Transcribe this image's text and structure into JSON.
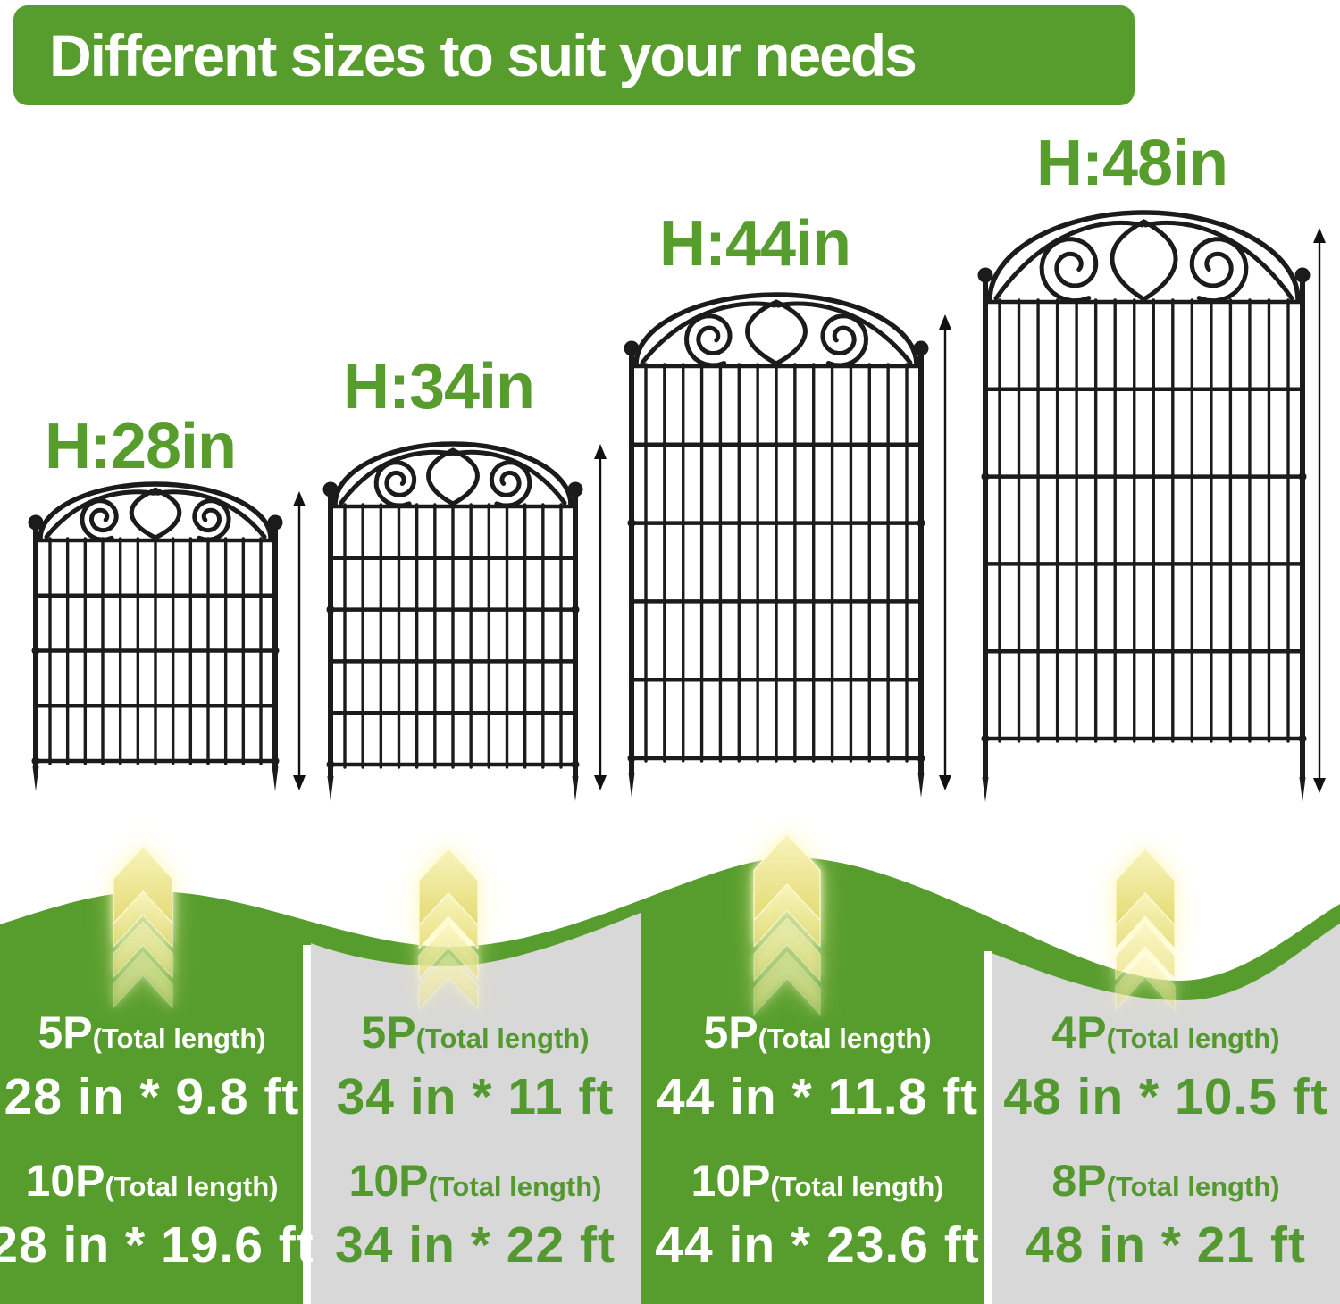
{
  "banner": {
    "title": "Different sizes to suit your needs"
  },
  "fences": [
    {
      "label": "H:28in",
      "height_in": 28
    },
    {
      "label": "H:34in",
      "height_in": 34
    },
    {
      "label": "H:44in",
      "height_in": 44
    },
    {
      "label": "H:48in",
      "height_in": 48
    }
  ],
  "columns": [
    {
      "theme": "green",
      "rows": [
        {
          "pack": "5P",
          "note": "(Total length)",
          "size": "28 in * 9.8 ft"
        },
        {
          "pack": "10P",
          "note": "(Total length)",
          "size": "28 in * 19.6 ft"
        }
      ]
    },
    {
      "theme": "gray",
      "rows": [
        {
          "pack": "5P",
          "note": "(Total length)",
          "size": "34 in * 11 ft"
        },
        {
          "pack": "10P",
          "note": "(Total length)",
          "size": "34 in * 22 ft"
        }
      ]
    },
    {
      "theme": "green",
      "rows": [
        {
          "pack": "5P",
          "note": "(Total length)",
          "size": "44 in * 11.8 ft"
        },
        {
          "pack": "10P",
          "note": "(Total length)",
          "size": "44 in * 23.6 ft"
        }
      ]
    },
    {
      "theme": "gray",
      "rows": [
        {
          "pack": "4P",
          "note": "(Total length)",
          "size": "48 in * 10.5 ft"
        },
        {
          "pack": "8P",
          "note": "(Total length)",
          "size": "48 in * 21 ft"
        }
      ]
    }
  ],
  "icons": {
    "up_chevrons": "up-chevrons-icon",
    "height_arrow": "height-arrow"
  },
  "colors": {
    "green": "#579d2e",
    "gray": "#d8d8d8",
    "green_text": "#549930",
    "white": "#ffffff",
    "fence": "#1b1b1b",
    "chevron_light": "#f8f4bc",
    "chevron_dark": "#e4da72"
  }
}
